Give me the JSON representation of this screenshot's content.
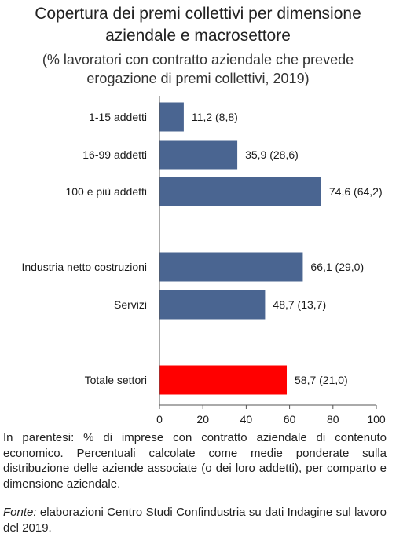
{
  "chart_data": {
    "type": "bar",
    "orientation": "horizontal",
    "title": "Copertura dei premi collettivi per dimensione\naziendale e macrosettore",
    "subtitle": "(% lavoratori con contratto aziendale che prevede\nerogazione di premi collettivi, 2019)",
    "categories": [
      "1-15 addetti",
      "16-99 addetti",
      "100 e più addetti",
      "Industria netto costruzioni",
      "Servizi",
      "Totale settori"
    ],
    "values": [
      11.2,
      35.9,
      74.6,
      66.1,
      48.7,
      58.7
    ],
    "data_labels": [
      "11,2 (8,8)",
      "35,9 (28,6)",
      "74,6 (64,2)",
      "66,1 (29,0)",
      "48,7 (13,7)",
      "58,7 (21,0)"
    ],
    "highlight_index": 5,
    "xlim": [
      0,
      100
    ],
    "xticks": [
      0,
      20,
      40,
      60,
      80,
      100
    ],
    "xtick_labels": [
      "0",
      "20",
      "40",
      "60",
      "80",
      "100"
    ],
    "grid": false,
    "colors": {
      "bar": "#4a6591",
      "highlight": "#ff0000",
      "axis": "#555555"
    }
  },
  "note": "In parentesi: % di imprese con contratto aziendale di contenuto economico. Percentuali calcolate come medie ponderate sulla distribuzione delle aziende associate (o dei loro addetti), per comparto e dimensione aziendale.",
  "source": {
    "lead": "Fonte:",
    "text": " elaborazioni Centro Studi Confindustria su dati Indagine sul lavoro del 2019."
  }
}
